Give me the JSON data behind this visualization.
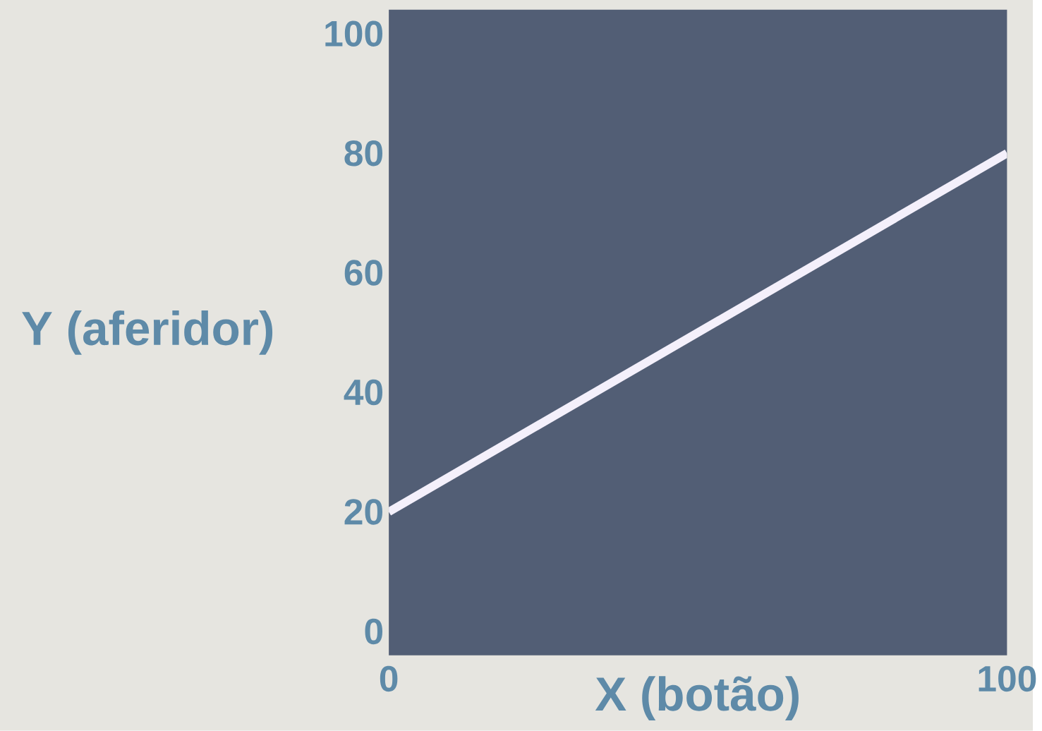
{
  "chart_data": {
    "type": "line",
    "xlabel": "X (botão)",
    "ylabel": "Y (aferidor)",
    "x": [
      0,
      100
    ],
    "values": [
      20,
      80
    ],
    "color": "#f4f0fb",
    "xlim": [
      0,
      100
    ],
    "ylim": [
      -4,
      104
    ],
    "xticks": [
      0,
      100
    ],
    "yticks": [
      0,
      20,
      40,
      60,
      80,
      100
    ],
    "line_style": "solid",
    "marker": "none"
  }
}
